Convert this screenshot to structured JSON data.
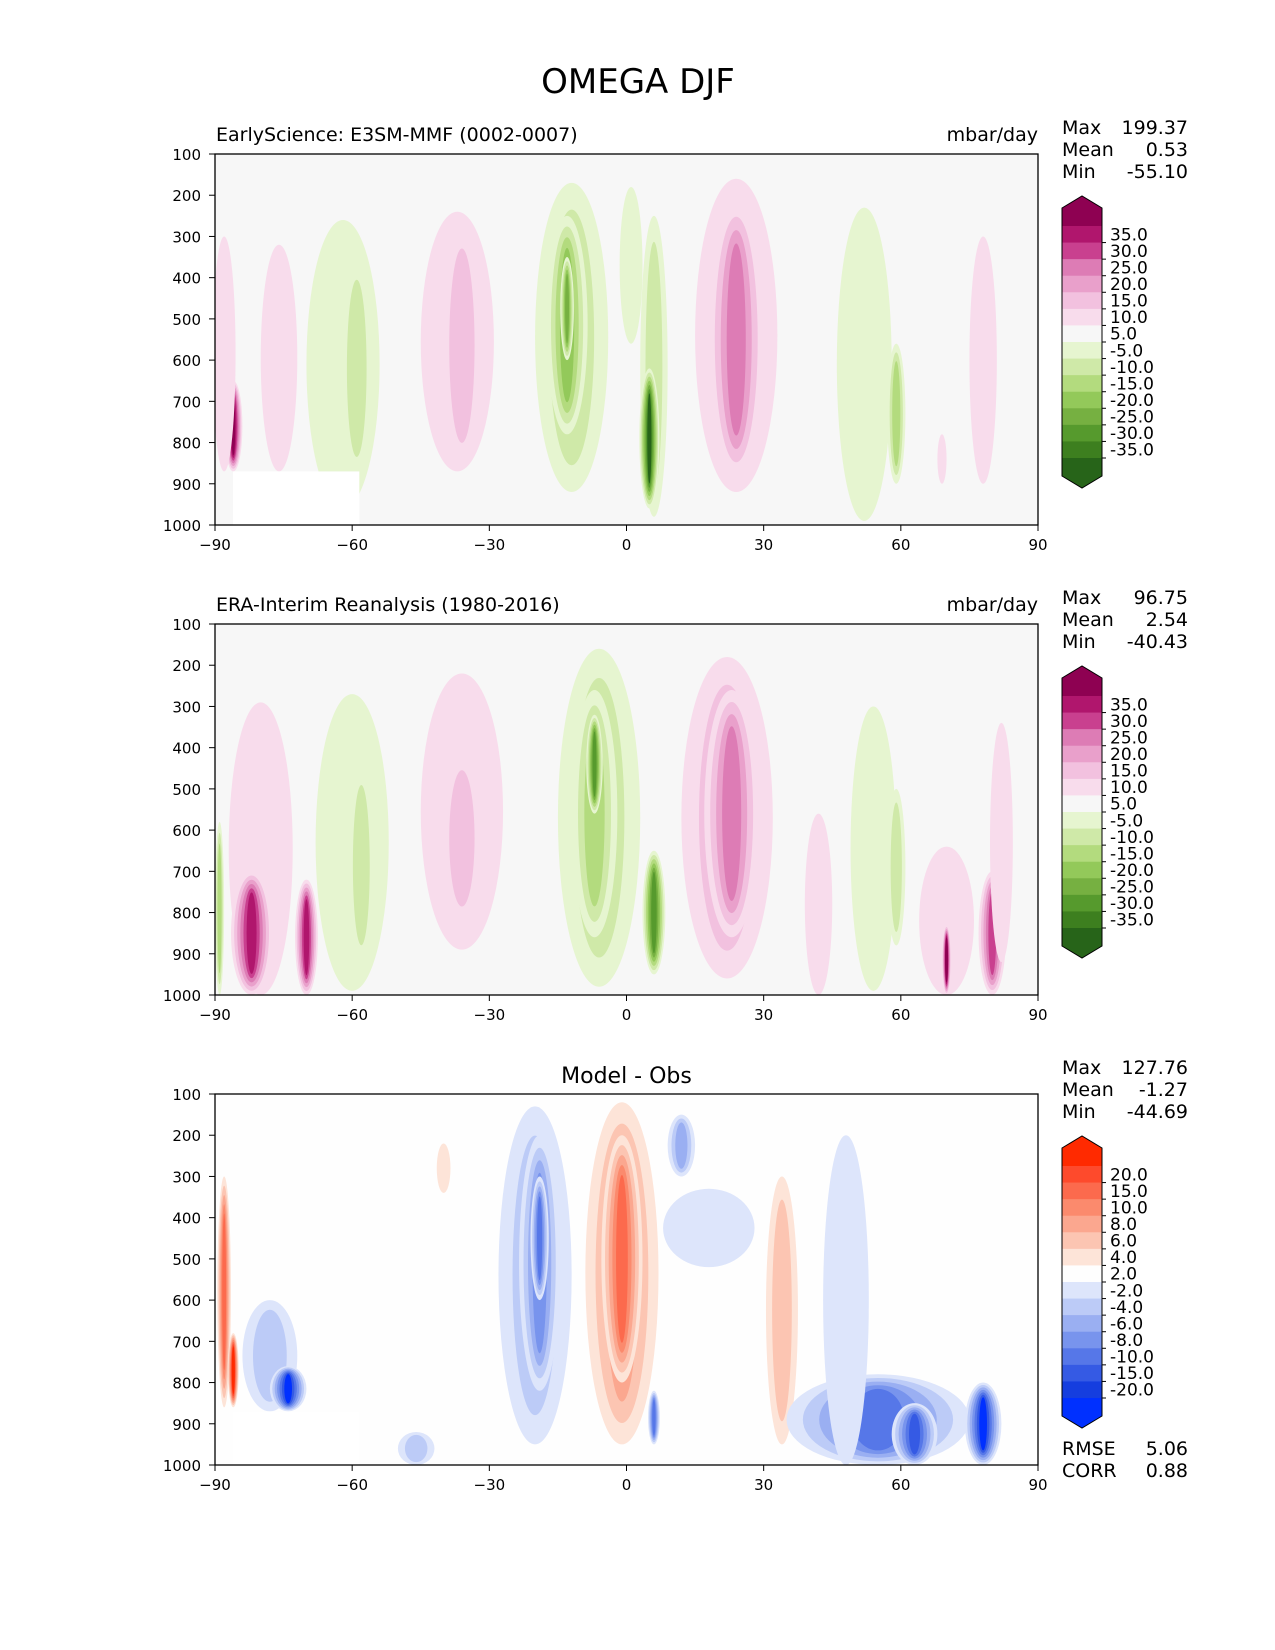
{
  "figure": {
    "title": "OMEGA DJF"
  },
  "chart_data": [
    {
      "type": "heatmap",
      "title": "EarlyScience: E3SM-MMF (0002-0007)",
      "units": "mbar/day",
      "x": [
        -90,
        -60,
        -30,
        0,
        30,
        60,
        90
      ],
      "xtick_labels": [
        "−90",
        "−60",
        "−30",
        "0",
        "30",
        "60",
        "90"
      ],
      "y": [
        100,
        200,
        300,
        400,
        500,
        600,
        700,
        800,
        900,
        1000
      ],
      "ytick_labels": [
        "100",
        "200",
        "300",
        "400",
        "500",
        "600",
        "700",
        "800",
        "900",
        "1000"
      ],
      "xlim": [
        -90,
        90
      ],
      "ylim": [
        1000,
        100
      ],
      "stats": [
        {
          "label": "Max",
          "value": "199.37"
        },
        {
          "label": "Mean",
          "value": "0.53"
        },
        {
          "label": "Min",
          "value": "-55.10"
        }
      ],
      "colorbar": {
        "labels": [
          "35.0",
          "30.0",
          "25.0",
          "20.0",
          "15.0",
          "10.0",
          "5.0",
          "-5.0",
          "-10.0",
          "-15.0",
          "-20.0",
          "-25.0",
          "-30.0",
          "-35.0"
        ],
        "colors": [
          "#8e0152",
          "#b0166d",
          "#c9408f",
          "#dd7cb5",
          "#e9a0cb",
          "#f2c1df",
          "#f8dcec",
          "#f7f7f7",
          "#e6f5d0",
          "#cfe9a8",
          "#b3db7e",
          "#93c95a",
          "#76b041",
          "#569a2d",
          "#3d7f1f",
          "#276419"
        ]
      },
      "blobs": [
        {
          "x": -86,
          "top": 650,
          "bottom": 870,
          "w": 2,
          "v": 38
        },
        {
          "x": -88,
          "top": 300,
          "bottom": 870,
          "w": 2.5,
          "v": 6
        },
        {
          "x": -76,
          "top": 320,
          "bottom": 870,
          "w": 4,
          "v": 6
        },
        {
          "x": -62,
          "top": 260,
          "bottom": 960,
          "w": 8,
          "v": -6
        },
        {
          "x": -59,
          "top": 360,
          "bottom": 880,
          "w": 3.5,
          "v": -11
        },
        {
          "x": -37,
          "top": 240,
          "bottom": 870,
          "w": 8,
          "v": 7
        },
        {
          "x": -36,
          "top": 280,
          "bottom": 850,
          "w": 4.5,
          "v": 12
        },
        {
          "x": -12,
          "top": 170,
          "bottom": 920,
          "w": 8,
          "v": -12
        },
        {
          "x": -13,
          "top": 250,
          "bottom": 780,
          "w": 4.5,
          "v": -21
        },
        {
          "x": -13,
          "top": 350,
          "bottom": 600,
          "w": 1.5,
          "v": -28
        },
        {
          "x": 6,
          "top": 250,
          "bottom": 980,
          "w": 3,
          "v": -12
        },
        {
          "x": 5,
          "top": 620,
          "bottom": 960,
          "w": 2.2,
          "v": -38
        },
        {
          "x": 1,
          "top": 180,
          "bottom": 560,
          "w": 2.5,
          "v": -6
        },
        {
          "x": 24,
          "top": 160,
          "bottom": 920,
          "w": 9,
          "v": 11
        },
        {
          "x": 24,
          "top": 220,
          "bottom": 880,
          "w": 6,
          "v": 22
        },
        {
          "x": 52,
          "top": 230,
          "bottom": 990,
          "w": 6,
          "v": -7
        },
        {
          "x": 59,
          "top": 560,
          "bottom": 900,
          "w": 2,
          "v": -16
        },
        {
          "x": 78,
          "top": 300,
          "bottom": 900,
          "w": 3,
          "v": 6
        },
        {
          "x": 69,
          "top": 780,
          "bottom": 900,
          "w": 1,
          "v": 8
        }
      ]
    },
    {
      "type": "heatmap",
      "title": "ERA-Interim Reanalysis (1980-2016)",
      "units": "mbar/day",
      "x": [
        -90,
        -60,
        -30,
        0,
        30,
        60,
        90
      ],
      "xtick_labels": [
        "−90",
        "−60",
        "−30",
        "0",
        "30",
        "60",
        "90"
      ],
      "y": [
        100,
        200,
        300,
        400,
        500,
        600,
        700,
        800,
        900,
        1000
      ],
      "ytick_labels": [
        "100",
        "200",
        "300",
        "400",
        "500",
        "600",
        "700",
        "800",
        "900",
        "1000"
      ],
      "xlim": [
        -90,
        90
      ],
      "ylim": [
        1000,
        100
      ],
      "stats": [
        {
          "label": "Max",
          "value": "96.75"
        },
        {
          "label": "Mean",
          "value": "2.54"
        },
        {
          "label": "Min",
          "value": "-40.43"
        }
      ],
      "colorbar": {
        "labels": [
          "35.0",
          "30.0",
          "25.0",
          "20.0",
          "15.0",
          "10.0",
          "5.0",
          "-5.0",
          "-10.0",
          "-15.0",
          "-20.0",
          "-25.0",
          "-30.0",
          "-35.0"
        ],
        "colors": [
          "#8e0152",
          "#b0166d",
          "#c9408f",
          "#dd7cb5",
          "#e9a0cb",
          "#f2c1df",
          "#f8dcec",
          "#f7f7f7",
          "#e6f5d0",
          "#cfe9a8",
          "#b3db7e",
          "#93c95a",
          "#76b041",
          "#569a2d",
          "#3d7f1f",
          "#276419"
        ]
      },
      "blobs": [
        {
          "x": -89,
          "top": 580,
          "bottom": 1000,
          "w": 1,
          "v": -18
        },
        {
          "x": -80,
          "top": 290,
          "bottom": 1000,
          "w": 7,
          "v": 7
        },
        {
          "x": -82,
          "top": 700,
          "bottom": 1000,
          "w": 4.5,
          "v": 30
        },
        {
          "x": -70,
          "top": 720,
          "bottom": 1000,
          "w": 2.5,
          "v": 34
        },
        {
          "x": -60,
          "top": 270,
          "bottom": 990,
          "w": 8,
          "v": -7
        },
        {
          "x": -58,
          "top": 450,
          "bottom": 920,
          "w": 3,
          "v": -10
        },
        {
          "x": -36,
          "top": 220,
          "bottom": 890,
          "w": 9,
          "v": 6
        },
        {
          "x": -36,
          "top": 420,
          "bottom": 820,
          "w": 4.5,
          "v": 12
        },
        {
          "x": -6,
          "top": 160,
          "bottom": 980,
          "w": 9,
          "v": -11
        },
        {
          "x": -7,
          "top": 260,
          "bottom": 860,
          "w": 5,
          "v": -19
        },
        {
          "x": -7,
          "top": 320,
          "bottom": 560,
          "w": 1.8,
          "v": -30
        },
        {
          "x": 6,
          "top": 650,
          "bottom": 950,
          "w": 2.5,
          "v": -34
        },
        {
          "x": 22,
          "top": 180,
          "bottom": 960,
          "w": 10,
          "v": 10
        },
        {
          "x": 23,
          "top": 260,
          "bottom": 860,
          "w": 6,
          "v": 22
        },
        {
          "x": 42,
          "top": 560,
          "bottom": 1000,
          "w": 3,
          "v": 8
        },
        {
          "x": 54,
          "top": 300,
          "bottom": 990,
          "w": 5,
          "v": -7
        },
        {
          "x": 59,
          "top": 500,
          "bottom": 880,
          "w": 2,
          "v": -14
        },
        {
          "x": 70,
          "top": 640,
          "bottom": 1000,
          "w": 6,
          "v": 9
        },
        {
          "x": 80,
          "top": 700,
          "bottom": 1000,
          "w": 3,
          "v": 28
        },
        {
          "x": 70,
          "top": 830,
          "bottom": 1000,
          "w": 1,
          "v": 38
        },
        {
          "x": 82,
          "top": 340,
          "bottom": 920,
          "w": 2.5,
          "v": 6
        }
      ]
    },
    {
      "type": "heatmap",
      "title": "Model - Obs",
      "units": "",
      "x": [
        -90,
        -60,
        -30,
        0,
        30,
        60,
        90
      ],
      "xtick_labels": [
        "−90",
        "−60",
        "−30",
        "0",
        "30",
        "60",
        "90"
      ],
      "y": [
        100,
        200,
        300,
        400,
        500,
        600,
        700,
        800,
        900,
        1000
      ],
      "ytick_labels": [
        "100",
        "200",
        "300",
        "400",
        "500",
        "600",
        "700",
        "800",
        "900",
        "1000"
      ],
      "xlim": [
        -90,
        90
      ],
      "ylim": [
        1000,
        100
      ],
      "stats": [
        {
          "label": "Max",
          "value": "127.76"
        },
        {
          "label": "Mean",
          "value": "-1.27"
        },
        {
          "label": "Min",
          "value": "-44.69"
        }
      ],
      "colorbar": {
        "labels": [
          "20.0",
          "15.0",
          "10.0",
          "8.0",
          "6.0",
          "4.0",
          "2.0",
          "-2.0",
          "-4.0",
          "-6.0",
          "-8.0",
          "-10.0",
          "-15.0",
          "-20.0"
        ],
        "colors": [
          "#ff2a00",
          "#fe4a2c",
          "#fc6a4d",
          "#fb8a6d",
          "#fba78f",
          "#fcc5b2",
          "#fde4d8",
          "#fefefe",
          "#dde5fb",
          "#bccbf7",
          "#9aaff2",
          "#7894ed",
          "#5677e8",
          "#355ae4",
          "#153edf",
          "#0030ff"
        ]
      },
      "blobs": [
        {
          "x": -88,
          "top": 300,
          "bottom": 860,
          "w": 1.5,
          "v": 10
        },
        {
          "x": -86,
          "top": 680,
          "bottom": 860,
          "w": 1.2,
          "v": 25
        },
        {
          "x": -78,
          "top": 600,
          "bottom": 870,
          "w": 6,
          "v": -5
        },
        {
          "x": -74,
          "top": 760,
          "bottom": 870,
          "w": 4,
          "v": -22
        },
        {
          "x": -20,
          "top": 130,
          "bottom": 950,
          "w": 8,
          "v": -4
        },
        {
          "x": -19,
          "top": 200,
          "bottom": 820,
          "w": 4.5,
          "v": -8
        },
        {
          "x": -19,
          "top": 300,
          "bottom": 600,
          "w": 2,
          "v": -11
        },
        {
          "x": -1,
          "top": 120,
          "bottom": 950,
          "w": 8,
          "v": 7
        },
        {
          "x": -1,
          "top": 200,
          "bottom": 800,
          "w": 4.5,
          "v": 12
        },
        {
          "x": 12,
          "top": 150,
          "bottom": 300,
          "w": 3,
          "v": -7
        },
        {
          "x": 6,
          "top": 820,
          "bottom": 950,
          "w": 1.3,
          "v": -10
        },
        {
          "x": 34,
          "top": 300,
          "bottom": 950,
          "w": 3.5,
          "v": 5
        },
        {
          "x": 18,
          "top": 330,
          "bottom": 520,
          "w": 10,
          "v": -3
        },
        {
          "x": 55,
          "top": 780,
          "bottom": 1000,
          "w": 20,
          "v": -12
        },
        {
          "x": 48,
          "top": 200,
          "bottom": 1000,
          "w": 5,
          "v": -3
        },
        {
          "x": 78,
          "top": 800,
          "bottom": 1000,
          "w": 4,
          "v": -22
        },
        {
          "x": 63,
          "top": 850,
          "bottom": 1000,
          "w": 5,
          "v": -18
        },
        {
          "x": -46,
          "top": 920,
          "bottom": 1000,
          "w": 4,
          "v": -5
        },
        {
          "x": -40,
          "top": 220,
          "bottom": 340,
          "w": 1.5,
          "v": 3
        }
      ],
      "metrics": [
        {
          "label": "RMSE",
          "value": "5.06"
        },
        {
          "label": "CORR",
          "value": "0.88"
        }
      ]
    }
  ]
}
